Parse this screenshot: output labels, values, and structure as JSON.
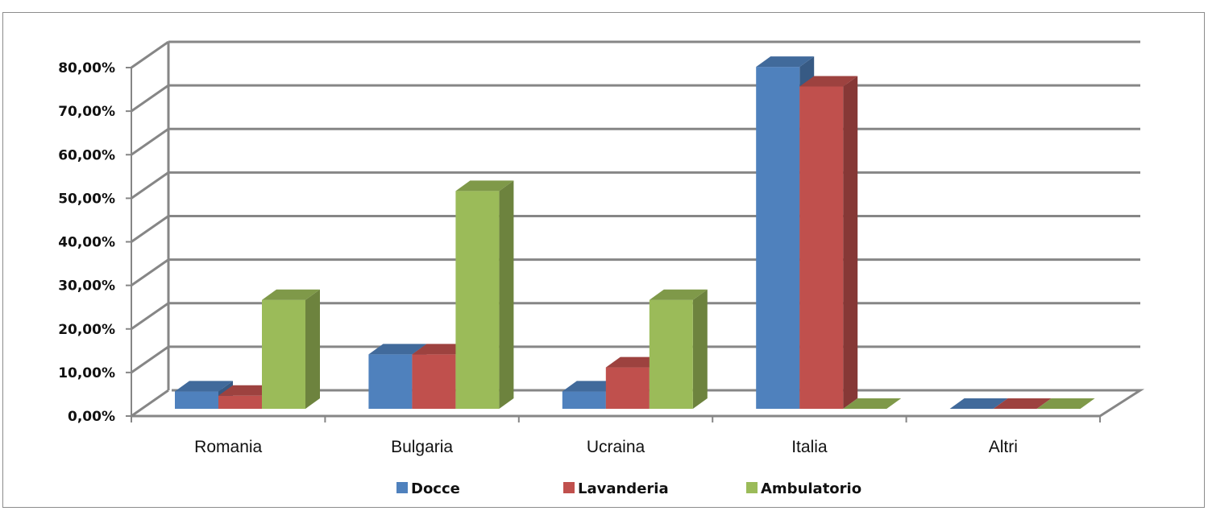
{
  "chart_data": {
    "type": "bar",
    "title": "",
    "xlabel": "",
    "ylabel": "",
    "categories": [
      "Romania",
      "Bulgaria",
      "Ucraina",
      "Italia",
      "Altri"
    ],
    "series": [
      {
        "name": "Docce",
        "values": [
          4.0,
          12.5,
          4.0,
          78.5,
          0.0
        ],
        "color": "#4f81bd"
      },
      {
        "name": "Lavanderia",
        "values": [
          3.0,
          12.5,
          9.5,
          74.0,
          0.0
        ],
        "color": "#c0504d"
      },
      {
        "name": "Ambulatorio",
        "values": [
          25.0,
          50.0,
          25.0,
          0.0,
          0.0
        ],
        "color": "#9bbb59"
      }
    ],
    "ylim": [
      0,
      80
    ],
    "yticks": [
      "0,00%",
      "10,00%",
      "20,00%",
      "30,00%",
      "40,00%",
      "50,00%",
      "60,00%",
      "70,00%",
      "80,00%"
    ],
    "grid": true,
    "three_d": true,
    "legend_position": "bottom"
  }
}
